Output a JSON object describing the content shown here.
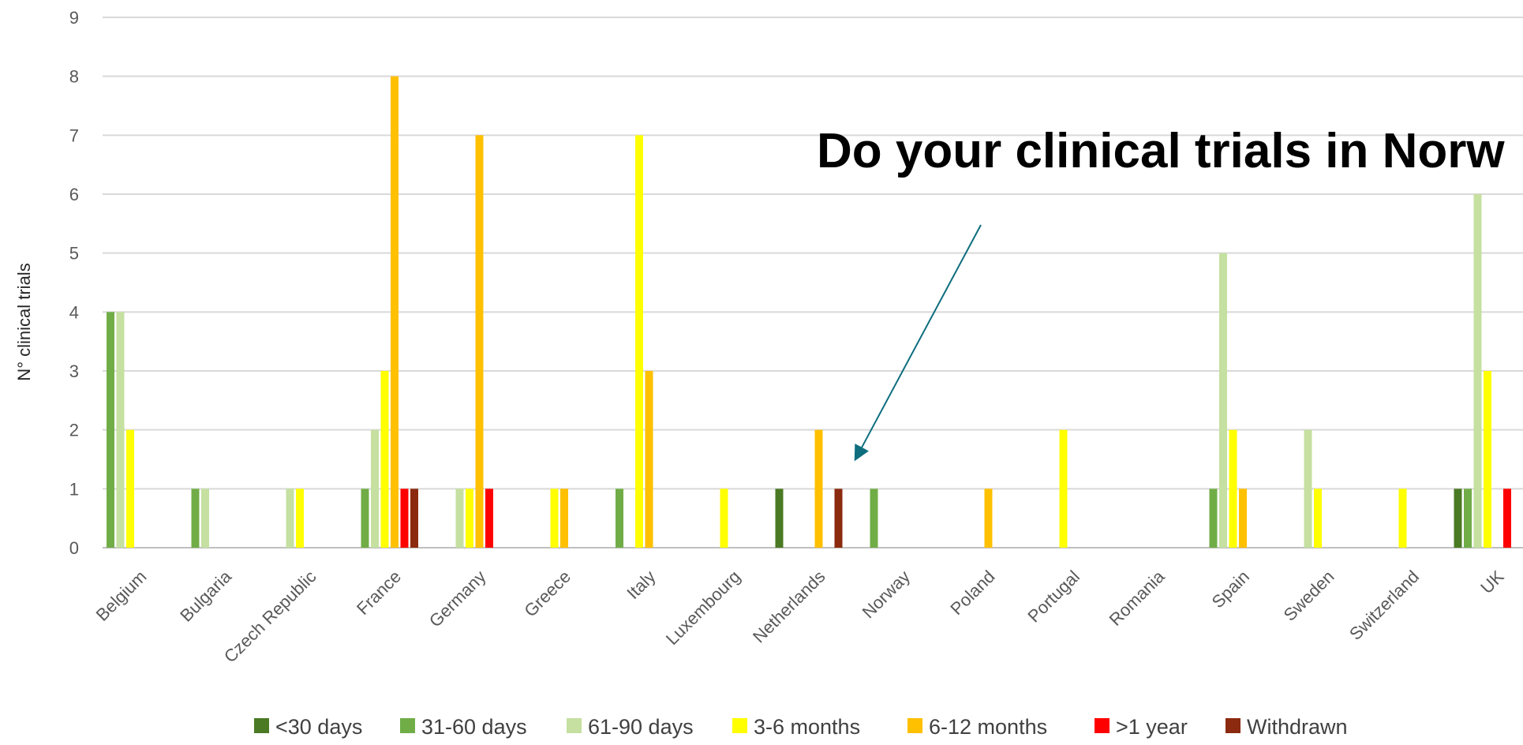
{
  "chart_data": {
    "type": "bar",
    "title": "",
    "xlabel": "",
    "ylabel": "N° clinical trials",
    "ylim": [
      0,
      9
    ],
    "yticks": [
      0,
      1,
      2,
      3,
      4,
      5,
      6,
      7,
      8,
      9
    ],
    "grid": true,
    "legend_position": "bottom",
    "categories": [
      "Belgium",
      "Bulgaria",
      "Czech Republic",
      "France",
      "Germany",
      "Greece",
      "Italy",
      "Luxembourg",
      "Netherlands",
      "Norway",
      "Poland",
      "Portugal",
      "Romania",
      "Spain",
      "Sweden",
      "Switzerland",
      "UK"
    ],
    "series": [
      {
        "name": "<30 days",
        "color": "#4A7A23",
        "values": [
          0,
          0,
          0,
          0,
          0,
          0,
          0,
          0,
          1,
          0,
          0,
          0,
          0,
          0,
          0,
          0,
          1
        ]
      },
      {
        "name": "31-60 days",
        "color": "#70AD47",
        "values": [
          4,
          1,
          0,
          1,
          0,
          0,
          1,
          0,
          0,
          1,
          0,
          0,
          0,
          1,
          0,
          0,
          1
        ]
      },
      {
        "name": "61-90 days",
        "color": "#C5E0A0",
        "values": [
          4,
          1,
          1,
          2,
          1,
          0,
          0,
          0,
          0,
          0,
          0,
          0,
          0,
          5,
          2,
          0,
          6
        ]
      },
      {
        "name": "3-6 months",
        "color": "#FFFF00",
        "values": [
          2,
          0,
          1,
          3,
          1,
          1,
          7,
          1,
          0,
          0,
          0,
          2,
          0,
          2,
          1,
          1,
          3
        ]
      },
      {
        "name": "6-12 months",
        "color": "#FFC000",
        "values": [
          0,
          0,
          0,
          8,
          7,
          1,
          3,
          0,
          2,
          0,
          1,
          0,
          0,
          1,
          0,
          0,
          0
        ]
      },
      {
        "name": ">1 year",
        "color": "#FF0000",
        "values": [
          0,
          0,
          0,
          1,
          1,
          0,
          0,
          0,
          0,
          0,
          0,
          0,
          0,
          0,
          0,
          0,
          1
        ]
      },
      {
        "name": "Withdrawn",
        "color": "#8B2A0E",
        "values": [
          0,
          0,
          0,
          1,
          0,
          0,
          0,
          0,
          1,
          0,
          0,
          0,
          0,
          0,
          0,
          0,
          0
        ]
      }
    ],
    "annotation": {
      "text": "Do your clinical trials in Norw",
      "arrow_target": "Norway",
      "color": "#000000",
      "arrow_color": "#0E6E7E"
    }
  }
}
